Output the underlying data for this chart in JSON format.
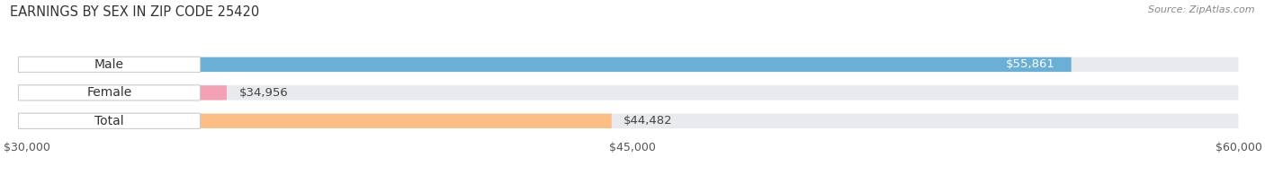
{
  "title": "EARNINGS BY SEX IN ZIP CODE 25420",
  "source": "Source: ZipAtlas.com",
  "categories": [
    "Male",
    "Female",
    "Total"
  ],
  "values": [
    55861,
    34956,
    44482
  ],
  "bar_colors": [
    "#6baed6",
    "#f4a0b5",
    "#fdbe85"
  ],
  "bar_track_color": "#e8eaed",
  "xlim": [
    30000,
    60000
  ],
  "xticks": [
    30000,
    45000,
    60000
  ],
  "xtick_labels": [
    "$30,000",
    "$45,000",
    "$60,000"
  ],
  "value_labels": [
    "$55,861",
    "$34,956",
    "$44,482"
  ],
  "title_fontsize": 10.5,
  "source_fontsize": 8,
  "tick_fontsize": 9,
  "label_fontsize": 10,
  "value_fontsize": 9.5,
  "background_color": "#ffffff",
  "fig_width": 14.06,
  "fig_height": 1.95
}
